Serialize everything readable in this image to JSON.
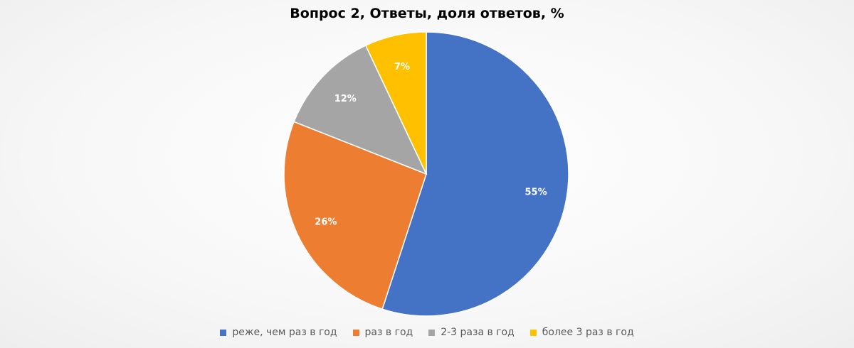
{
  "chart_data": {
    "type": "pie",
    "title": "Вопрос 2, Ответы, доля ответов, %",
    "categories": [
      "реже, чем раз в год",
      "раз в год",
      "2-3 раза в год",
      "более 3 раз в год"
    ],
    "values": [
      55,
      26,
      12,
      7
    ],
    "data_labels": [
      "55%",
      "26%",
      "12%",
      "7%"
    ],
    "colors": [
      "#4472c4",
      "#ed7d31",
      "#a5a5a5",
      "#ffc000"
    ],
    "legend_position": "bottom"
  }
}
